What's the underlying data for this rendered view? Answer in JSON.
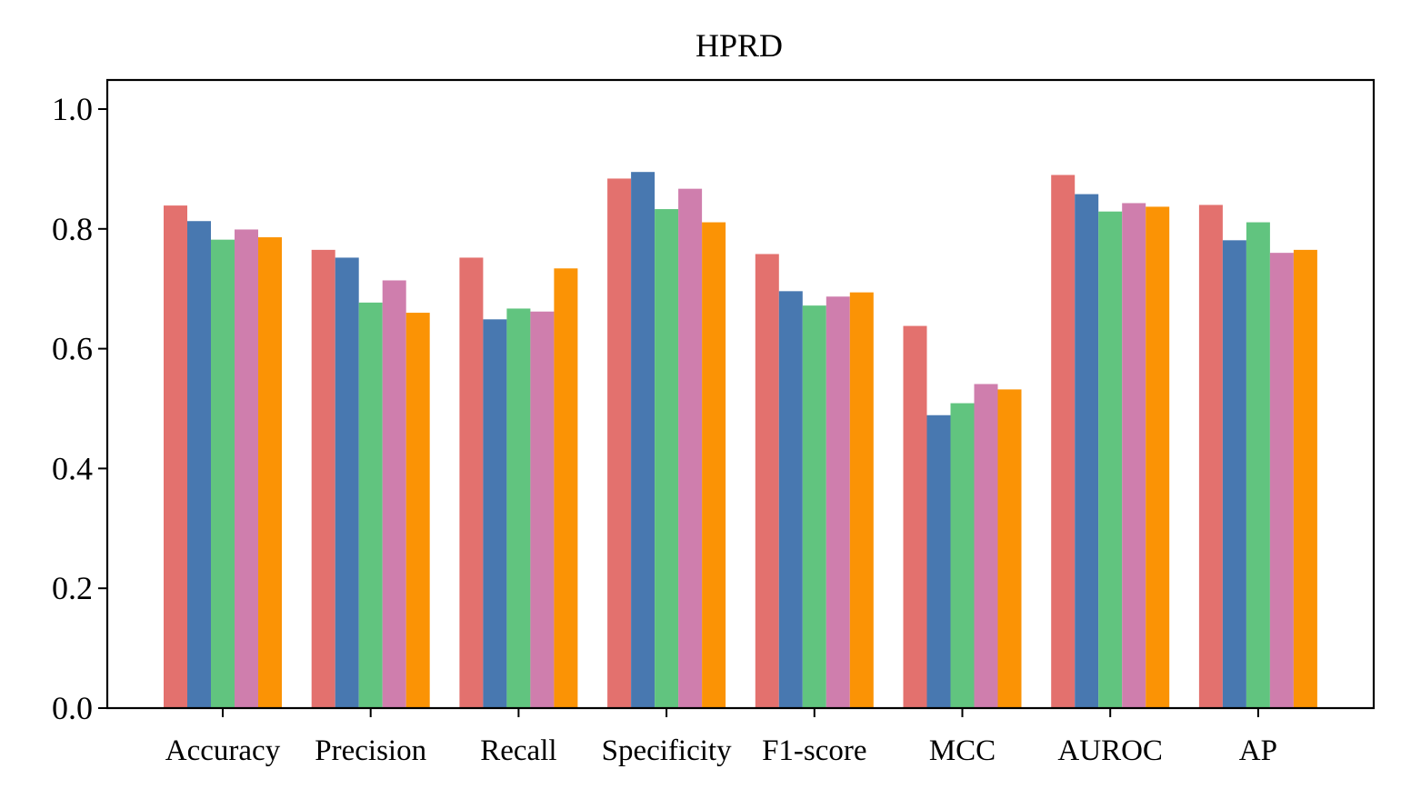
{
  "chart_data": {
    "type": "bar",
    "title": "HPRD",
    "xlabel": "",
    "ylabel": "",
    "ylim": [
      0,
      1.05
    ],
    "yticks": [
      "0.0",
      "0.2",
      "0.4",
      "0.6",
      "0.8",
      "1.0"
    ],
    "grid": false,
    "legend": "none",
    "categories": [
      "Accuracy",
      "Precision",
      "Recall",
      "Specificity",
      "F1-score",
      "MCC",
      "AUROC",
      "AP"
    ],
    "series": [
      {
        "color": "#e3716e",
        "values": [
          0.839,
          0.765,
          0.752,
          0.884,
          0.758,
          0.638,
          0.89,
          0.84
        ]
      },
      {
        "color": "#4878b0",
        "values": [
          0.813,
          0.752,
          0.649,
          0.895,
          0.696,
          0.489,
          0.858,
          0.781
        ]
      },
      {
        "color": "#61c47f",
        "values": [
          0.782,
          0.677,
          0.667,
          0.833,
          0.672,
          0.509,
          0.829,
          0.811
        ]
      },
      {
        "color": "#cf7ead",
        "values": [
          0.799,
          0.714,
          0.662,
          0.867,
          0.687,
          0.541,
          0.843,
          0.76
        ]
      },
      {
        "color": "#fb9305",
        "values": [
          0.786,
          0.66,
          0.734,
          0.811,
          0.694,
          0.532,
          0.837,
          0.765
        ]
      }
    ]
  }
}
